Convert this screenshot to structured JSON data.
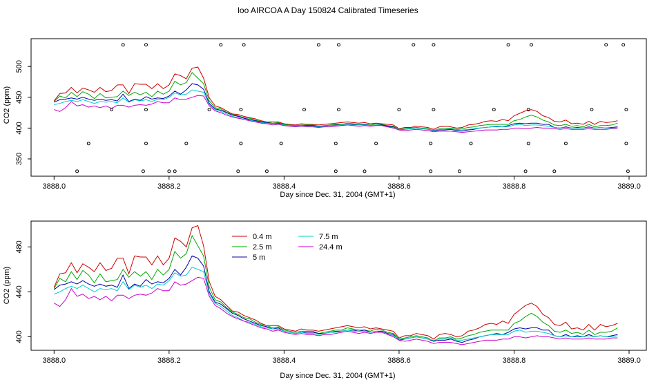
{
  "title": "loo AIRCOA A  Day 150824  Calibrated Timeseries",
  "chart_data": [
    {
      "type": "scatter",
      "xlabel": "Day since Dec. 31, 2004 (GMT+1)",
      "ylabel": "CO2 (ppm)",
      "xlim": [
        3887.96,
        3889.03
      ],
      "ylim": [
        322,
        545
      ],
      "xticks": [
        "3888.0",
        "3888.2",
        "3888.4",
        "3888.6",
        "3888.8",
        "3889.0"
      ],
      "xtick_values": [
        3888.0,
        3888.2,
        3888.4,
        3888.6,
        3888.8,
        3889.0
      ],
      "yticks": [
        "350",
        "400",
        "450",
        "500"
      ],
      "ytick_values": [
        350,
        400,
        450,
        500
      ],
      "line_series_from_lower_panel": true,
      "markers": {
        "x": [
          3888.04,
          3888.06,
          3888.1,
          3888.12,
          3888.155,
          3888.16,
          3888.16,
          3888.16,
          3888.2,
          3888.21,
          3888.23,
          3888.27,
          3888.29,
          3888.32,
          3888.325,
          3888.325,
          3888.33,
          3888.37,
          3888.395,
          3888.435,
          3888.46,
          3888.49,
          3888.49,
          3888.495,
          3888.495,
          3888.54,
          3888.56,
          3888.6,
          3888.625,
          3888.655,
          3888.655,
          3888.66,
          3888.66,
          3888.705,
          3888.725,
          3888.765,
          3888.79,
          3888.82,
          3888.825,
          3888.825,
          3888.83,
          3888.87,
          3888.89,
          3888.935,
          3888.96,
          3888.99,
          3888.995,
          3888.995,
          3888.998
        ],
        "y": [
          330,
          375,
          430,
          535,
          330,
          375,
          430,
          535,
          330,
          330,
          375,
          430,
          535,
          330,
          375,
          430,
          535,
          330,
          375,
          430,
          535,
          330,
          375,
          430,
          535,
          330,
          375,
          430,
          535,
          330,
          375,
          430,
          535,
          330,
          375,
          430,
          535,
          330,
          375,
          430,
          535,
          330,
          375,
          430,
          535,
          535,
          430,
          375,
          330
        ]
      }
    },
    {
      "type": "line",
      "xlabel": "Day since Dec. 31, 2004 (GMT+1)",
      "ylabel": "CO2 (ppm)",
      "xlim": [
        3887.96,
        3889.03
      ],
      "ylim": [
        388,
        503
      ],
      "xticks": [
        "3888.0",
        "3888.2",
        "3888.4",
        "3888.6",
        "3888.8",
        "3889.0"
      ],
      "xtick_values": [
        3888.0,
        3888.2,
        3888.4,
        3888.6,
        3888.8,
        3889.0
      ],
      "yticks": [
        "400",
        "440",
        "480"
      ],
      "ytick_values": [
        400,
        440,
        480
      ],
      "legend_position": "top-center",
      "x": [
        3888.0,
        3888.01,
        3888.02,
        3888.03,
        3888.04,
        3888.05,
        3888.06,
        3888.07,
        3888.08,
        3888.09,
        3888.1,
        3888.11,
        3888.12,
        3888.13,
        3888.14,
        3888.15,
        3888.16,
        3888.17,
        3888.18,
        3888.19,
        3888.2,
        3888.21,
        3888.22,
        3888.23,
        3888.24,
        3888.25,
        3888.26,
        3888.27,
        3888.28,
        3888.29,
        3888.3,
        3888.31,
        3888.32,
        3888.33,
        3888.34,
        3888.35,
        3888.36,
        3888.37,
        3888.38,
        3888.39,
        3888.4,
        3888.41,
        3888.42,
        3888.43,
        3888.44,
        3888.45,
        3888.46,
        3888.47,
        3888.48,
        3888.49,
        3888.5,
        3888.51,
        3888.52,
        3888.53,
        3888.54,
        3888.55,
        3888.56,
        3888.57,
        3888.58,
        3888.59,
        3888.6,
        3888.61,
        3888.62,
        3888.63,
        3888.64,
        3888.65,
        3888.66,
        3888.67,
        3888.68,
        3888.69,
        3888.7,
        3888.71,
        3888.72,
        3888.73,
        3888.74,
        3888.75,
        3888.76,
        3888.77,
        3888.78,
        3888.79,
        3888.8,
        3888.81,
        3888.82,
        3888.83,
        3888.84,
        3888.85,
        3888.86,
        3888.87,
        3888.88,
        3888.89,
        3888.9,
        3888.91,
        3888.92,
        3888.93,
        3888.94,
        3888.95,
        3888.96,
        3888.97,
        3888.98
      ],
      "series": [
        {
          "name": "0.4 m",
          "color": "#cc0000",
          "values": [
            444,
            456,
            457,
            466,
            457,
            465,
            462,
            458,
            466,
            459,
            461,
            470,
            470,
            456,
            472,
            471,
            471,
            464,
            472,
            464,
            470,
            488,
            485,
            480,
            497,
            499,
            481,
            449,
            436,
            433,
            428,
            423,
            422,
            419,
            417,
            415,
            412,
            410,
            410,
            410,
            407,
            406,
            405,
            407,
            406,
            406,
            405,
            406,
            407,
            408,
            409,
            410,
            409,
            408,
            409,
            407,
            408,
            407,
            406,
            405,
            399,
            401,
            401,
            403,
            402,
            401,
            398,
            402,
            403,
            402,
            400,
            401,
            405,
            406,
            408,
            411,
            412,
            411,
            414,
            412,
            420,
            424,
            428,
            430,
            427,
            420,
            417,
            411,
            410,
            413,
            407,
            408,
            406,
            411,
            406,
            411,
            409,
            410,
            412
          ]
        },
        {
          "name": "2.5 m",
          "color": "#00aa00",
          "values": [
            443,
            452,
            449,
            458,
            451,
            459,
            455,
            448,
            456,
            449,
            450,
            451,
            460,
            453,
            458,
            454,
            458,
            451,
            460,
            455,
            460,
            476,
            470,
            474,
            490,
            481,
            472,
            444,
            433,
            431,
            426,
            422,
            420,
            417,
            416,
            413,
            411,
            410,
            408,
            409,
            406,
            405,
            404,
            405,
            405,
            405,
            403,
            404,
            405,
            406,
            406,
            408,
            407,
            406,
            406,
            405,
            407,
            406,
            404,
            403,
            398,
            399,
            400,
            401,
            400,
            399,
            396,
            399,
            399,
            400,
            398,
            399,
            401,
            402,
            404,
            405,
            406,
            406,
            406,
            406,
            412,
            414,
            418,
            421,
            418,
            413,
            410,
            405,
            404,
            406,
            403,
            404,
            402,
            406,
            402,
            404,
            404,
            405,
            408
          ]
        },
        {
          "name": "5 m",
          "color": "#0000aa",
          "values": [
            442,
            446,
            447,
            449,
            447,
            450,
            447,
            445,
            447,
            445,
            446,
            444,
            455,
            443,
            447,
            445,
            451,
            447,
            449,
            448,
            452,
            460,
            455,
            462,
            472,
            470,
            463,
            440,
            431,
            429,
            425,
            421,
            419,
            416,
            414,
            412,
            410,
            409,
            407,
            408,
            405,
            404,
            403,
            404,
            404,
            404,
            403,
            403,
            404,
            405,
            405,
            406,
            406,
            405,
            406,
            404,
            405,
            405,
            403,
            402,
            397,
            398,
            399,
            400,
            399,
            398,
            396,
            397,
            397,
            398,
            396,
            395,
            397,
            398,
            400,
            401,
            402,
            403,
            402,
            404,
            407,
            408,
            407,
            408,
            408,
            406,
            406,
            401,
            400,
            402,
            400,
            401,
            400,
            402,
            400,
            401,
            400,
            401,
            402
          ]
        },
        {
          "name": "7.5 m",
          "color": "#00cccc",
          "values": [
            438,
            440,
            443,
            445,
            443,
            446,
            443,
            440,
            443,
            442,
            443,
            441,
            449,
            442,
            446,
            444,
            446,
            443,
            447,
            446,
            450,
            457,
            454,
            455,
            462,
            460,
            458,
            438,
            430,
            427,
            423,
            419,
            417,
            414,
            413,
            411,
            409,
            408,
            407,
            407,
            405,
            404,
            403,
            404,
            403,
            403,
            402,
            403,
            404,
            404,
            405,
            406,
            405,
            405,
            405,
            404,
            405,
            404,
            402,
            401,
            398,
            398,
            399,
            400,
            399,
            398,
            397,
            398,
            398,
            399,
            397,
            397,
            398,
            399,
            400,
            401,
            402,
            402,
            402,
            402,
            405,
            406,
            404,
            405,
            405,
            404,
            403,
            401,
            400,
            401,
            400,
            400,
            400,
            401,
            400,
            401,
            400,
            400,
            401
          ]
        },
        {
          "name": "24.4 m",
          "color": "#cc00cc",
          "values": [
            430,
            427,
            433,
            443,
            436,
            438,
            434,
            436,
            433,
            436,
            432,
            437,
            437,
            434,
            437,
            438,
            437,
            439,
            443,
            441,
            441,
            449,
            446,
            447,
            450,
            453,
            452,
            436,
            428,
            425,
            421,
            418,
            416,
            414,
            412,
            410,
            408,
            407,
            405,
            406,
            404,
            403,
            402,
            403,
            402,
            402,
            401,
            402,
            402,
            403,
            404,
            405,
            404,
            403,
            404,
            403,
            404,
            404,
            402,
            400,
            397,
            396,
            397,
            398,
            397,
            396,
            394,
            395,
            395,
            395,
            394,
            393,
            394,
            395,
            396,
            397,
            397,
            397,
            398,
            398,
            400,
            400,
            399,
            400,
            401,
            400,
            400,
            399,
            398,
            399,
            398,
            398,
            398,
            399,
            398,
            398,
            398,
            399,
            399
          ]
        }
      ]
    }
  ]
}
